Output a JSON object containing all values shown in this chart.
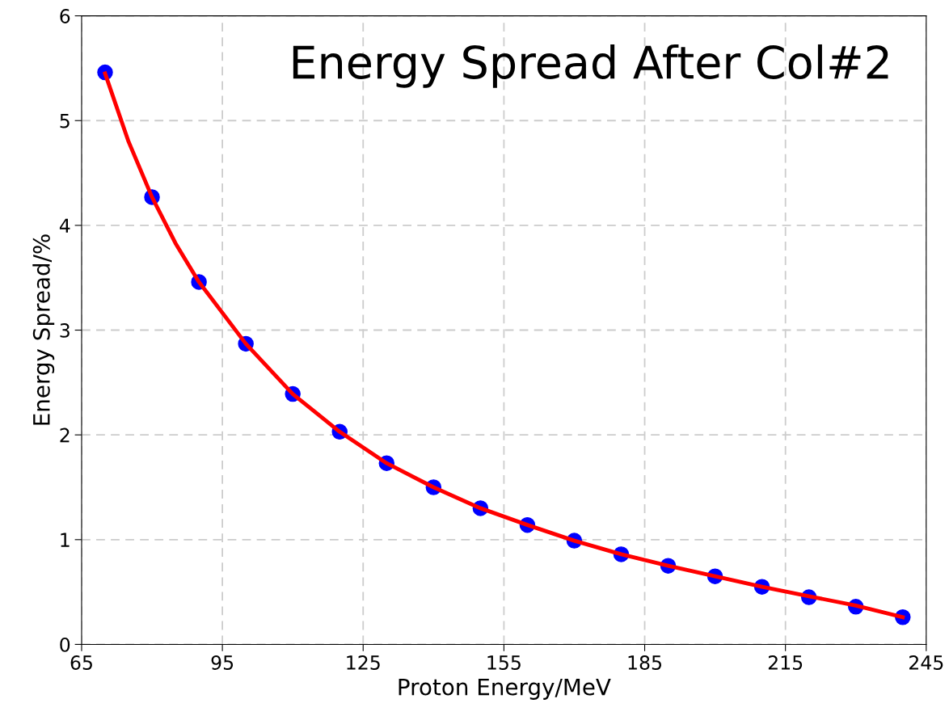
{
  "chart_data": {
    "type": "scatter",
    "xlabel": "Proton Energy/MeV",
    "ylabel": "Energy Spread/%",
    "annotations": [
      "Energy Spread After Col#2"
    ],
    "x": [
      70,
      80,
      90,
      100,
      110,
      120,
      130,
      140,
      150,
      160,
      170,
      180,
      190,
      200,
      210,
      220,
      230,
      240
    ],
    "series": [
      {
        "color": "#0000ff",
        "marker": "circle",
        "values": [
          5.46,
          4.27,
          3.46,
          2.87,
          2.39,
          2.03,
          1.73,
          1.5,
          1.3,
          1.14,
          0.99,
          0.86,
          0.75,
          0.65,
          0.55,
          0.45,
          0.36,
          0.26
        ]
      },
      {
        "type": "line",
        "color": "#ff0000",
        "line_style": "solid",
        "x": [
          70,
          75,
          80,
          85,
          90,
          100,
          110,
          120,
          130,
          140,
          150,
          160,
          170,
          180,
          190,
          200,
          210,
          220,
          230,
          240
        ],
        "values": [
          5.45,
          4.8,
          4.27,
          3.83,
          3.46,
          2.87,
          2.39,
          2.03,
          1.73,
          1.5,
          1.3,
          1.14,
          0.99,
          0.86,
          0.75,
          0.65,
          0.55,
          0.46,
          0.37,
          0.26
        ]
      }
    ],
    "xlim": [
      65,
      245
    ],
    "xticks": [
      65,
      95,
      125,
      155,
      185,
      215,
      245
    ],
    "ylim": [
      0,
      6
    ],
    "yticks": [
      0,
      1,
      2,
      3,
      4,
      5,
      6
    ],
    "grid": true,
    "legend": false
  }
}
